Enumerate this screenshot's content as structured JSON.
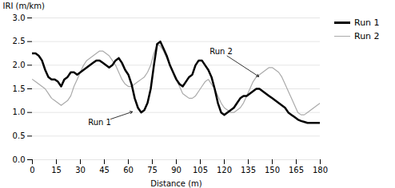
{
  "chart_data": {
    "type": "line",
    "xlabel": "Distance (m)",
    "ylabel": "IRI (m/km)",
    "x": [
      0,
      2,
      4,
      6,
      8,
      10,
      12,
      14,
      16,
      18,
      20,
      22,
      24,
      26,
      28,
      30,
      32,
      34,
      36,
      38,
      40,
      42,
      44,
      46,
      48,
      50,
      52,
      54,
      56,
      58,
      60,
      62,
      64,
      66,
      68,
      70,
      72,
      74,
      76,
      78,
      80,
      82,
      84,
      86,
      88,
      90,
      92,
      94,
      96,
      98,
      100,
      102,
      104,
      106,
      108,
      110,
      112,
      114,
      116,
      118,
      120,
      122,
      124,
      126,
      128,
      130,
      132,
      134,
      136,
      138,
      140,
      142,
      144,
      146,
      148,
      150,
      152,
      154,
      156,
      158,
      160,
      162,
      164,
      166,
      168,
      170,
      172,
      174,
      176,
      178,
      180
    ],
    "series": [
      {
        "name": "Run 1",
        "color": "#000000",
        "values": [
          2.25,
          2.25,
          2.2,
          2.1,
          1.9,
          1.75,
          1.7,
          1.7,
          1.65,
          1.55,
          1.7,
          1.75,
          1.85,
          1.85,
          1.8,
          1.85,
          1.9,
          1.95,
          2.0,
          2.05,
          2.1,
          2.1,
          2.05,
          2.0,
          1.95,
          2.0,
          2.1,
          2.15,
          2.05,
          1.9,
          1.8,
          1.6,
          1.3,
          1.1,
          1.0,
          1.05,
          1.2,
          1.5,
          2.0,
          2.45,
          2.5,
          2.35,
          2.2,
          2.0,
          1.85,
          1.7,
          1.6,
          1.55,
          1.65,
          1.75,
          1.8,
          2.0,
          2.1,
          2.1,
          2.0,
          1.9,
          1.75,
          1.5,
          1.2,
          1.0,
          0.95,
          1.0,
          1.05,
          1.1,
          1.2,
          1.3,
          1.35,
          1.35,
          1.4,
          1.45,
          1.5,
          1.5,
          1.45,
          1.4,
          1.35,
          1.3,
          1.25,
          1.2,
          1.15,
          1.1,
          1.0,
          0.95,
          0.9,
          0.85,
          0.82,
          0.8,
          0.78,
          0.78,
          0.78,
          0.78,
          0.78
        ]
      },
      {
        "name": "Run 2",
        "color": "#aaaaaa",
        "values": [
          1.7,
          1.65,
          1.6,
          1.55,
          1.5,
          1.4,
          1.3,
          1.25,
          1.2,
          1.15,
          1.2,
          1.25,
          1.35,
          1.55,
          1.7,
          1.85,
          2.0,
          2.1,
          2.15,
          2.2,
          2.25,
          2.3,
          2.3,
          2.25,
          2.2,
          2.1,
          2.0,
          1.85,
          1.7,
          1.6,
          1.55,
          1.55,
          1.6,
          1.65,
          1.7,
          1.75,
          1.85,
          2.0,
          2.25,
          2.45,
          2.4,
          2.3,
          2.15,
          2.0,
          1.85,
          1.7,
          1.55,
          1.4,
          1.35,
          1.3,
          1.3,
          1.35,
          1.45,
          1.55,
          1.65,
          1.7,
          1.6,
          1.5,
          1.35,
          1.2,
          1.1,
          1.05,
          1.0,
          1.0,
          1.05,
          1.1,
          1.2,
          1.35,
          1.5,
          1.65,
          1.75,
          1.8,
          1.85,
          1.9,
          1.95,
          1.95,
          1.9,
          1.85,
          1.75,
          1.6,
          1.45,
          1.3,
          1.15,
          1.0,
          0.95,
          0.95,
          1.0,
          1.05,
          1.1,
          1.15,
          1.2
        ]
      }
    ],
    "xlim": [
      0,
      180
    ],
    "ylim": [
      0.0,
      3.0
    ],
    "xticks": [
      0,
      15,
      30,
      45,
      60,
      75,
      90,
      105,
      120,
      135,
      150,
      165,
      180
    ],
    "yticks": [
      {
        "value": 0,
        "label": "0.0"
      },
      0.5,
      {
        "value": 1,
        "label": "1.0"
      },
      1.5,
      {
        "value": 2,
        "label": "2.0"
      },
      2.5,
      {
        "value": 3,
        "label": "3.0"
      }
    ],
    "annotations": [
      {
        "text": "Run 1",
        "xy": [
          63,
          1.02
        ],
        "xytext": [
          42,
          0.78
        ]
      },
      {
        "text": "Run 2",
        "xy": [
          142,
          1.75
        ],
        "xytext": [
          118,
          2.28
        ]
      }
    ],
    "grid": true,
    "legend": "right"
  }
}
